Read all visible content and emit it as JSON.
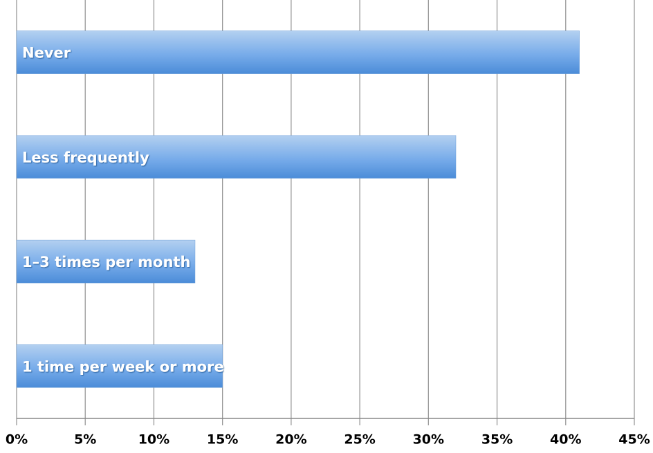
{
  "chart_data": {
    "type": "bar",
    "orientation": "horizontal",
    "categories": [
      "Never",
      "Less frequently",
      "1–3 times per month",
      "1 time per week or more"
    ],
    "values": [
      41,
      32,
      13,
      15
    ],
    "color": "#6fa6e6",
    "xlim": [
      0,
      45
    ],
    "xticks": [
      {
        "value": 0,
        "label": "0%"
      },
      {
        "value": 5,
        "label": "5%"
      },
      {
        "value": 10,
        "label": "10%"
      },
      {
        "value": 15,
        "label": "15%"
      },
      {
        "value": 20,
        "label": "20%"
      },
      {
        "value": 25,
        "label": "25%"
      },
      {
        "value": 30,
        "label": "30%"
      },
      {
        "value": 35,
        "label": "35%"
      },
      {
        "value": 40,
        "label": "40%"
      },
      {
        "value": 45,
        "label": "45%"
      }
    ],
    "grid": true
  }
}
